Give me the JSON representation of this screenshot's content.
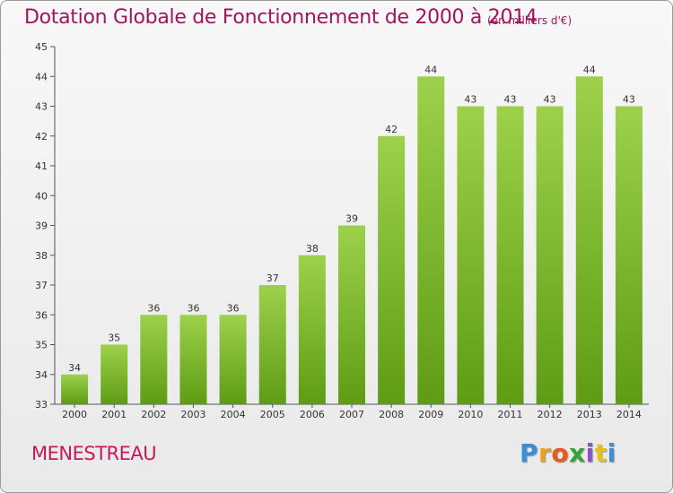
{
  "chart_data": {
    "type": "bar",
    "title": "Dotation Globale de Fonctionnement de 2000 à 2014",
    "subtitle": "(en milliers d'€)",
    "xlabel": "",
    "ylabel": "",
    "categories": [
      "2000",
      "2001",
      "2002",
      "2003",
      "2004",
      "2005",
      "2006",
      "2007",
      "2008",
      "2009",
      "2010",
      "2011",
      "2012",
      "2013",
      "2014"
    ],
    "values": [
      34,
      35,
      36,
      36,
      36,
      37,
      38,
      39,
      42,
      44,
      43,
      43,
      43,
      44,
      43
    ],
    "ylim": [
      33,
      45
    ],
    "yticks": [
      33,
      34,
      35,
      36,
      37,
      38,
      39,
      40,
      41,
      42,
      43,
      44,
      45
    ],
    "grid": false,
    "bar_color": "#7fbf2a",
    "bar_color_light": "#9dd14b",
    "bar_color_dark": "#5e9c14"
  },
  "footer": {
    "commune": "MENESTREAU",
    "logo_letters": [
      "P",
      "r",
      "o",
      "x",
      "i",
      "t",
      "i"
    ],
    "logo_colors": [
      "#3a8fd6",
      "#e8a21b",
      "#e85a1b",
      "#3aa13a",
      "#8a52c6",
      "#e8c21b",
      "#3a8fd6"
    ]
  },
  "colors": {
    "title": "#a0155c",
    "commune": "#c8185a"
  }
}
